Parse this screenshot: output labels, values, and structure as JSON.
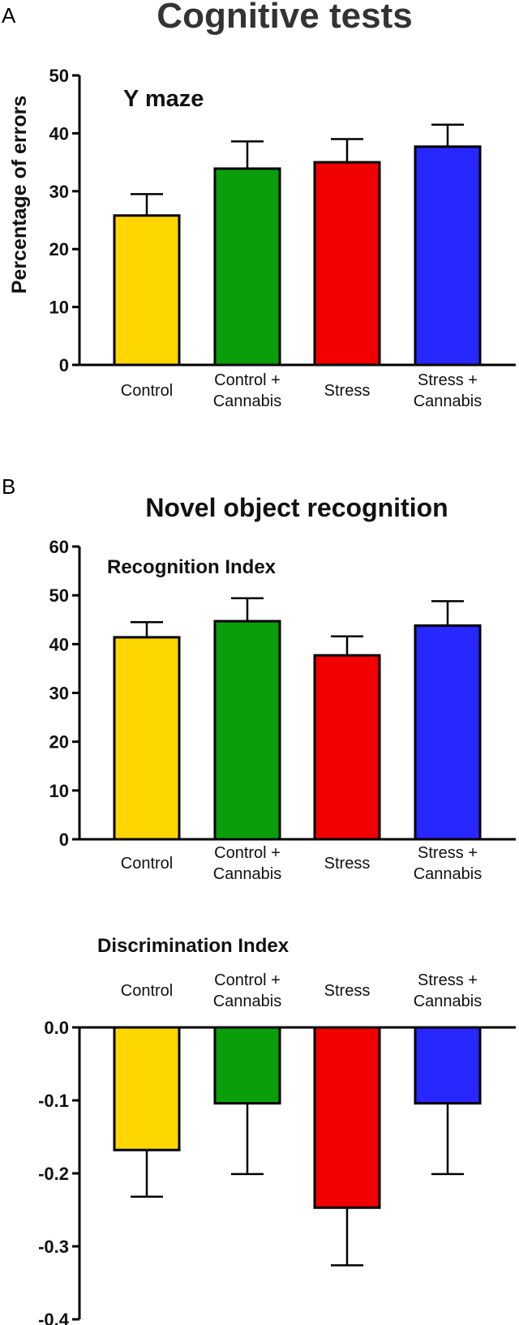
{
  "panel_a_letter": "A",
  "panel_b_letter": "B",
  "main_title": "Cognitive tests",
  "panel_b_title": "Novel object recognition",
  "colors": {
    "Control": "#FFD700",
    "Control + Cannabis": "#0A9F0A",
    "Stress": "#F20000",
    "Stress + Cannabis": "#2727FF"
  },
  "chart_data": [
    {
      "type": "bar",
      "title": "Y maze",
      "ylabel": "Percentage of errors",
      "xlabel": "",
      "categories": [
        [
          "Control"
        ],
        [
          "Control +",
          "Cannabis"
        ],
        [
          "Stress"
        ],
        [
          "Stress +",
          "Cannabis"
        ]
      ],
      "category_keys": [
        "Control",
        "Control + Cannabis",
        "Stress",
        "Stress + Cannabis"
      ],
      "values": [
        25.8,
        33.9,
        35.0,
        37.7
      ],
      "errors": [
        3.7,
        4.7,
        4.0,
        3.8
      ],
      "ylim": [
        0,
        50
      ],
      "yticks": [
        0,
        10,
        20,
        30,
        40,
        50
      ],
      "ytick_labels": [
        "0",
        "10",
        "20",
        "30",
        "40",
        "50"
      ]
    },
    {
      "type": "bar",
      "title": "Recognition Index",
      "ylabel": "",
      "xlabel": "",
      "categories": [
        [
          "Control"
        ],
        [
          "Control +",
          "Cannabis"
        ],
        [
          "Stress"
        ],
        [
          "Stress +",
          "Cannabis"
        ]
      ],
      "category_keys": [
        "Control",
        "Control + Cannabis",
        "Stress",
        "Stress + Cannabis"
      ],
      "values": [
        41.4,
        44.7,
        37.7,
        43.8
      ],
      "errors": [
        3.1,
        4.7,
        3.9,
        5.0
      ],
      "ylim": [
        0,
        60
      ],
      "yticks": [
        0,
        10,
        20,
        30,
        40,
        50,
        60
      ],
      "ytick_labels": [
        "0",
        "10",
        "20",
        "30",
        "40",
        "50",
        "60"
      ]
    },
    {
      "type": "bar",
      "title": "Discrimination Index",
      "ylabel": "",
      "xlabel": "",
      "categories": [
        [
          "Control"
        ],
        [
          "Control +",
          "Cannabis"
        ],
        [
          "Stress"
        ],
        [
          "Stress +",
          "Cannabis"
        ]
      ],
      "category_keys": [
        "Control",
        "Control + Cannabis",
        "Stress",
        "Stress + Cannabis"
      ],
      "values": [
        -0.168,
        -0.104,
        -0.247,
        -0.104
      ],
      "errors": [
        0.064,
        0.097,
        0.079,
        0.097
      ],
      "ylim": [
        -0.4,
        0.0
      ],
      "yticks": [
        0.0,
        -0.1,
        -0.2,
        -0.3,
        -0.4
      ],
      "ytick_labels": [
        "0.0",
        "-0.1",
        "-0.2",
        "-0.3",
        "-0.4"
      ]
    }
  ]
}
